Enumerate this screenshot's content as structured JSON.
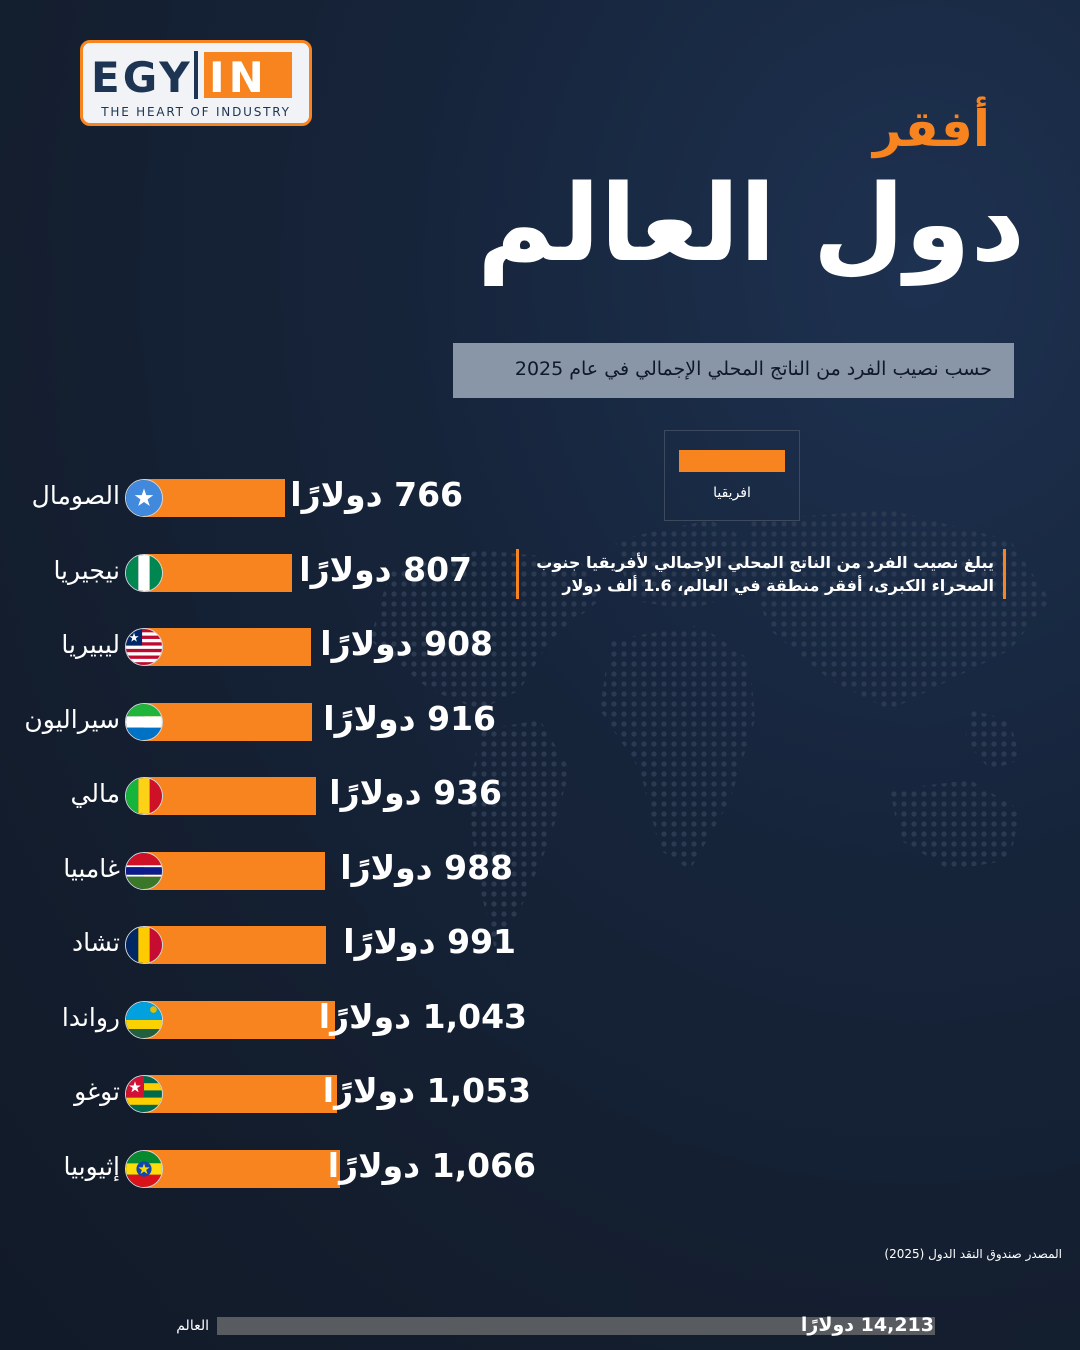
{
  "logo": {
    "egy": "EGY",
    "in": "IN",
    "tagline": "THE HEART OF INDUSTRY"
  },
  "title_line1": "أفقر",
  "title_line2": "دول العالم",
  "subtitle": "حسب نصيب الفرد من الناتج المحلي الإجمالي في عام 2025",
  "legend": {
    "label": "افريقيا",
    "color": "#f7841f"
  },
  "note": "يبلغ نصيب الفرد من الناتج المحلي الإجمالي لأفريقيا جنوب الصحراء الكبرى، أفقر منطقة في العالم، 1.6 ألف دولار",
  "source": "المصدر صندوق النقد الدول (2025)",
  "colors": {
    "accent": "#f7841f",
    "background": "#131d2d",
    "world_bar": "#585b60"
  },
  "chart_data": {
    "type": "bar",
    "orientation": "horizontal",
    "categories": [
      "الصومال",
      "نيجيريا",
      "ليبيريا",
      "سيراليون",
      "مالي",
      "غامبيا",
      "تشاد",
      "رواندا",
      "توغو",
      "إثيوبيا"
    ],
    "values": [
      766,
      807,
      908,
      916,
      936,
      988,
      991,
      1043,
      1053,
      1066
    ],
    "value_labels": [
      "766 دولارًا",
      "807 دولارًا",
      "908 دولارًا",
      "916 دولارًا",
      "936 دولارًا",
      "988 دولارًا",
      "991 دولارًا",
      "1,043 دولارًا",
      "1,053 دولارًا",
      "1,066 دولارًا"
    ],
    "flags": [
      "somalia",
      "nigeria",
      "liberia",
      "sierra-leone",
      "mali",
      "gambia",
      "chad",
      "rwanda",
      "togo",
      "ethiopia"
    ],
    "series": [
      {
        "name": "افريقيا",
        "color": "#f7841f"
      }
    ],
    "reference": {
      "name": "العالم",
      "value": 14213,
      "label": "14,213 دولارًا",
      "color": "#585b60"
    }
  }
}
